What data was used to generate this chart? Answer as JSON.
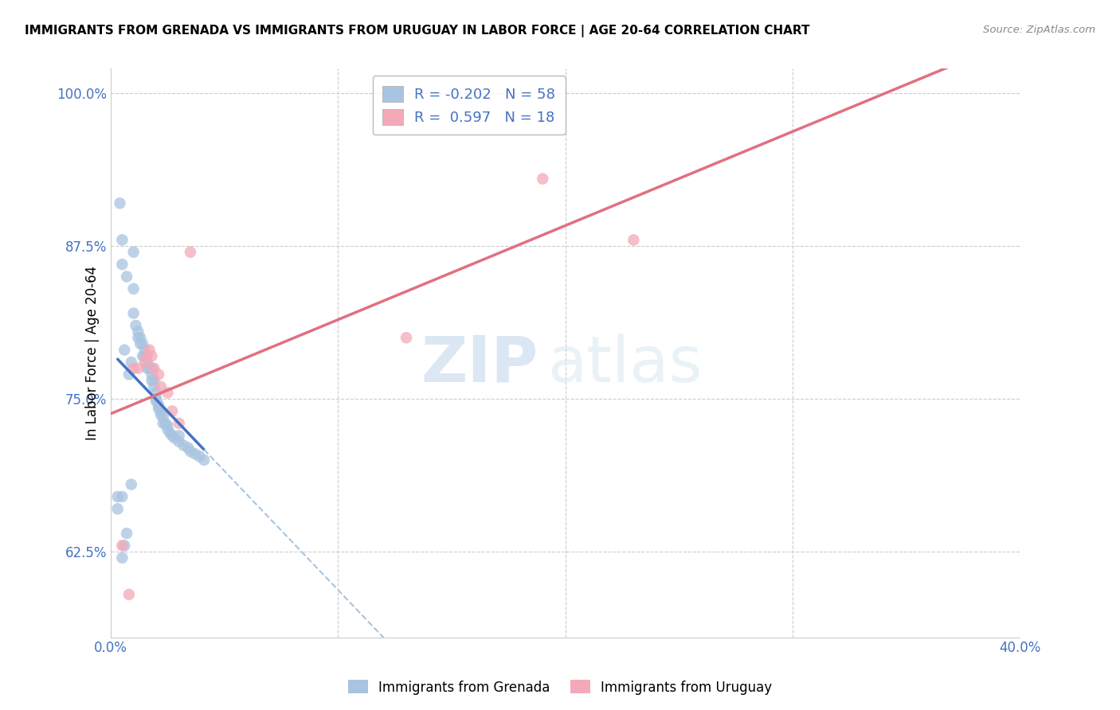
{
  "title": "IMMIGRANTS FROM GRENADA VS IMMIGRANTS FROM URUGUAY IN LABOR FORCE | AGE 20-64 CORRELATION CHART",
  "source": "Source: ZipAtlas.com",
  "ylabel": "In Labor Force | Age 20-64",
  "xlim": [
    0.0,
    0.4
  ],
  "ylim": [
    0.555,
    1.02
  ],
  "ytick_labels": [
    "62.5%",
    "75.0%",
    "87.5%",
    "100.0%"
  ],
  "ytick_values": [
    0.625,
    0.75,
    0.875,
    1.0
  ],
  "xtick_values": [
    0.0,
    0.1,
    0.2,
    0.3,
    0.4
  ],
  "grenada_color": "#a8c4e0",
  "uruguay_color": "#f4a8b8",
  "grenada_line_color": "#4472c4",
  "uruguay_line_color": "#e07080",
  "grenada_R": -0.202,
  "grenada_N": 58,
  "uruguay_R": 0.597,
  "uruguay_N": 18,
  "legend_label_grenada": "Immigrants from Grenada",
  "legend_label_uruguay": "Immigrants from Uruguay",
  "watermark_zip": "ZIP",
  "watermark_atlas": "atlas",
  "axis_color": "#4472c4",
  "grenada_x": [
    0.003,
    0.004,
    0.005,
    0.005,
    0.005,
    0.006,
    0.006,
    0.007,
    0.007,
    0.008,
    0.009,
    0.009,
    0.01,
    0.01,
    0.01,
    0.011,
    0.012,
    0.012,
    0.013,
    0.013,
    0.014,
    0.014,
    0.015,
    0.015,
    0.015,
    0.016,
    0.016,
    0.017,
    0.018,
    0.018,
    0.018,
    0.019,
    0.019,
    0.02,
    0.02,
    0.02,
    0.021,
    0.021,
    0.022,
    0.022,
    0.023,
    0.023,
    0.024,
    0.025,
    0.025,
    0.026,
    0.027,
    0.028,
    0.03,
    0.03,
    0.032,
    0.034,
    0.035,
    0.037,
    0.039,
    0.041,
    0.003,
    0.005
  ],
  "grenada_y": [
    0.67,
    0.91,
    0.88,
    0.86,
    0.62,
    0.79,
    0.63,
    0.85,
    0.64,
    0.77,
    0.78,
    0.68,
    0.87,
    0.84,
    0.82,
    0.81,
    0.805,
    0.8,
    0.8,
    0.795,
    0.795,
    0.785,
    0.79,
    0.785,
    0.785,
    0.78,
    0.775,
    0.775,
    0.775,
    0.77,
    0.765,
    0.765,
    0.76,
    0.755,
    0.75,
    0.748,
    0.745,
    0.742,
    0.74,
    0.737,
    0.735,
    0.73,
    0.73,
    0.728,
    0.725,
    0.722,
    0.72,
    0.718,
    0.72,
    0.715,
    0.712,
    0.71,
    0.707,
    0.705,
    0.703,
    0.7,
    0.66,
    0.67
  ],
  "uruguay_x": [
    0.005,
    0.008,
    0.01,
    0.012,
    0.015,
    0.016,
    0.017,
    0.018,
    0.019,
    0.021,
    0.022,
    0.025,
    0.027,
    0.03,
    0.035,
    0.13,
    0.19,
    0.23
  ],
  "uruguay_y": [
    0.63,
    0.59,
    0.775,
    0.775,
    0.78,
    0.785,
    0.79,
    0.785,
    0.775,
    0.77,
    0.76,
    0.755,
    0.74,
    0.73,
    0.87,
    0.8,
    0.93,
    0.88
  ],
  "background_color": "#ffffff",
  "grid_color": "#cccccc",
  "grenada_line_solid_xmax": 0.042,
  "uruguay_line_xmin": 0.0,
  "uruguay_line_xmax": 0.4
}
